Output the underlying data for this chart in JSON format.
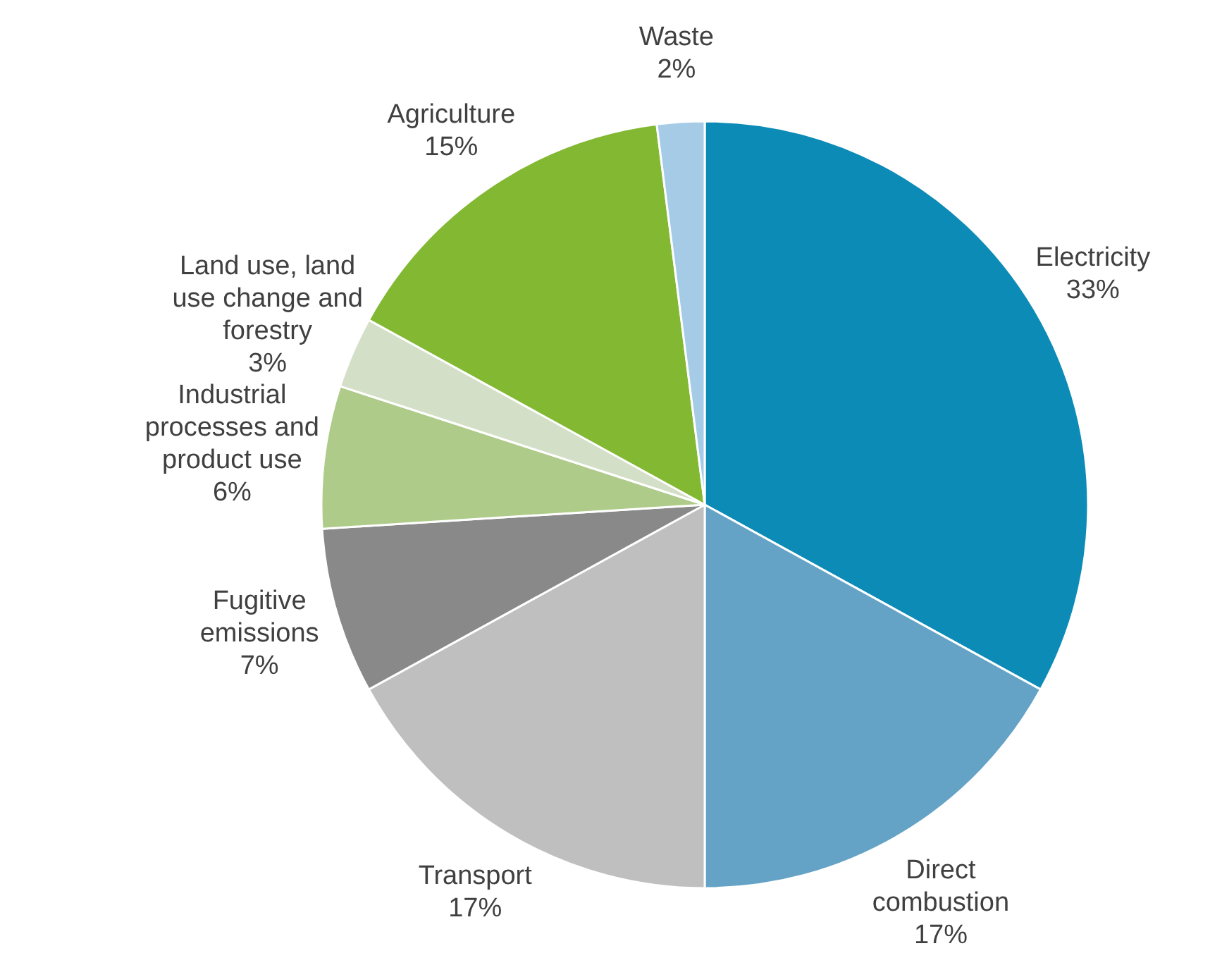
{
  "chart_data": {
    "type": "pie",
    "categories": [
      "Electricity",
      "Direct combustion",
      "Transport",
      "Fugitive emissions",
      "Industrial processes and product use",
      "Land use, land use change and forestry",
      "Agriculture",
      "Waste"
    ],
    "values": [
      33,
      17,
      17,
      7,
      6,
      3,
      15,
      2
    ],
    "colors": [
      "#0b8bb6",
      "#65a3c6",
      "#bfbfbf",
      "#898989",
      "#afcb8a",
      "#d3dfc6",
      "#82b832",
      "#a5cbe6"
    ],
    "value_labels": [
      "33%",
      "17%",
      "17%",
      "7%",
      "6%",
      "3%",
      "15%",
      "2%"
    ]
  }
}
